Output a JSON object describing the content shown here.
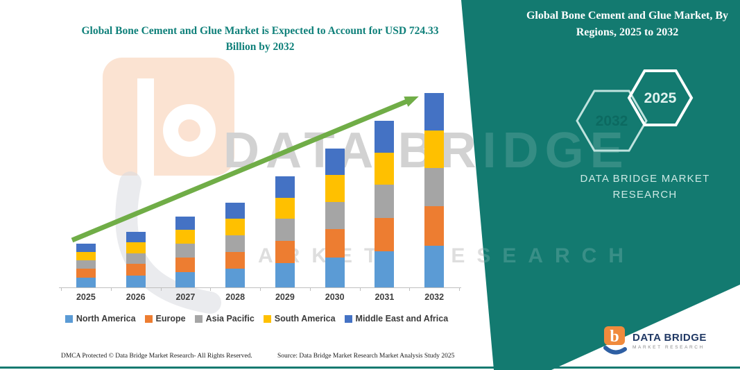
{
  "main_title": "Global Bone Cement and Glue Market is Expected to Account for USD 724.33 Billion by 2032",
  "side_panel": {
    "title": "Global Bone Cement and Glue Market, By Regions, 2025 to 2032",
    "hexagon_back_year": "2032",
    "hexagon_front_year": "2025",
    "brand_line1": "DATA BRIDGE MARKET",
    "brand_line2": "RESEARCH"
  },
  "watermark": {
    "line1": "DATA BRIDGE",
    "line2": "MARKET RESEARCH"
  },
  "footer": {
    "dmca": "DMCA Protected © Data Bridge Market Research-  All Rights Reserved.",
    "source": "Source: Data Bridge Market Research  Market Analysis Study 2025"
  },
  "logo": {
    "line1": "DATA BRIDGE",
    "line2": "MARKET RESEARCH"
  },
  "colors": {
    "accent_teal": "#137A70",
    "title_teal": "#0F807A",
    "arrow_green": "#70AD47"
  },
  "chart_data": {
    "type": "bar",
    "stacked": true,
    "title": "Global Bone Cement and Glue Market is Expected to Account for USD 724.33 Billion by 2032",
    "unit": "USD Billion (estimated from bar heights; 2032 total stated as 724.33)",
    "categories": [
      "2025",
      "2026",
      "2027",
      "2028",
      "2029",
      "2030",
      "2031",
      "2032"
    ],
    "series": [
      {
        "name": "North America",
        "color": "#5B9BD5",
        "values": [
          36,
          45,
          58,
          69,
          90,
          112,
          134,
          156
        ]
      },
      {
        "name": "Europe",
        "color": "#ED7D31",
        "values": [
          33,
          42,
          53,
          64,
          84,
          105,
          126,
          146
        ]
      },
      {
        "name": "Asia Pacific",
        "color": "#A5A5A5",
        "values": [
          32,
          41,
          52,
          62,
          81,
          101,
          122,
          142
        ]
      },
      {
        "name": "South America",
        "color": "#FFC000",
        "values": [
          32,
          40,
          51,
          61,
          80,
          100,
          121,
          141
        ]
      },
      {
        "name": "Middle East and Africa",
        "color": "#4472C4",
        "values": [
          30,
          39,
          50,
          60,
          79,
          99,
          118,
          139.33
        ]
      }
    ],
    "totals_estimated": [
      163,
      207,
      264,
      316,
      414,
      517,
      621,
      724.33
    ],
    "y_axis_visible": false,
    "grid": false,
    "legend_position": "bottom",
    "annotations": [
      "green upward trend arrow across bars"
    ]
  }
}
